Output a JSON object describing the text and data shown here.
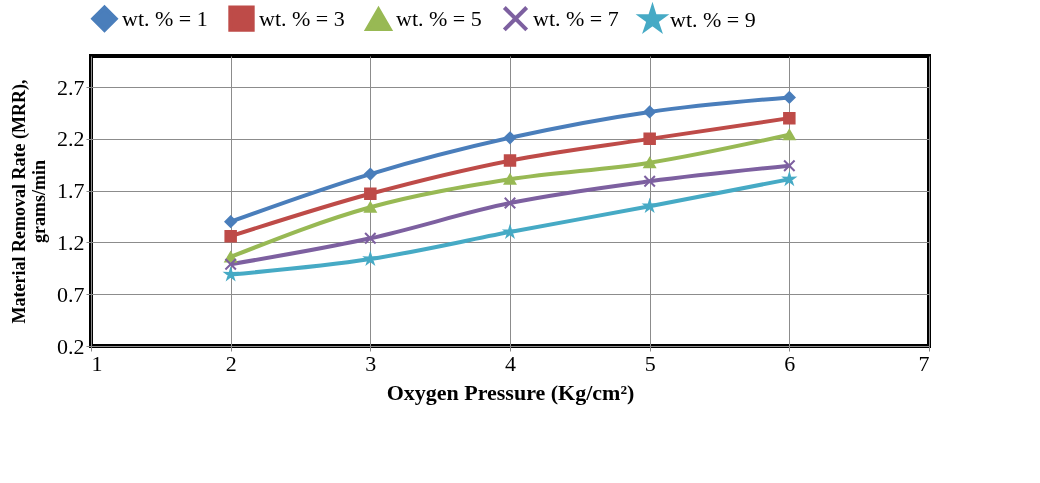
{
  "chart_data": {
    "type": "line",
    "xlabel": "Oxygen Pressure (Kg/cm²)",
    "ylabel": "Material Removal Rate (MRR), grams/min",
    "x": [
      2,
      3,
      4,
      5,
      6
    ],
    "series": [
      {
        "name": "wt. % = 1",
        "color": "#4a7ebb",
        "marker": "diamond",
        "values": [
          1.4,
          1.86,
          2.21,
          2.46,
          2.6
        ]
      },
      {
        "name": "wt. % = 3",
        "color": "#be4b48",
        "marker": "square",
        "values": [
          1.26,
          1.67,
          1.99,
          2.2,
          2.4
        ]
      },
      {
        "name": "wt. % = 5",
        "color": "#98b954",
        "marker": "triangle",
        "values": [
          1.06,
          1.54,
          1.81,
          1.97,
          2.24
        ]
      },
      {
        "name": "wt. % = 7",
        "color": "#7d60a0",
        "marker": "cross",
        "values": [
          0.99,
          1.24,
          1.58,
          1.79,
          1.94
        ]
      },
      {
        "name": "wt. % = 9",
        "color": "#46aac5",
        "marker": "star",
        "values": [
          0.89,
          1.04,
          1.3,
          1.55,
          1.81
        ]
      }
    ],
    "xlim": [
      1,
      7
    ],
    "xticks": [
      1,
      2,
      3,
      4,
      5,
      6,
      7
    ],
    "ylim": [
      0.2,
      3.0
    ],
    "yticks": [
      0.2,
      0.7,
      1.2,
      1.7,
      2.2,
      2.7
    ],
    "grid": true,
    "legend": "top",
    "line_style": "solid"
  }
}
